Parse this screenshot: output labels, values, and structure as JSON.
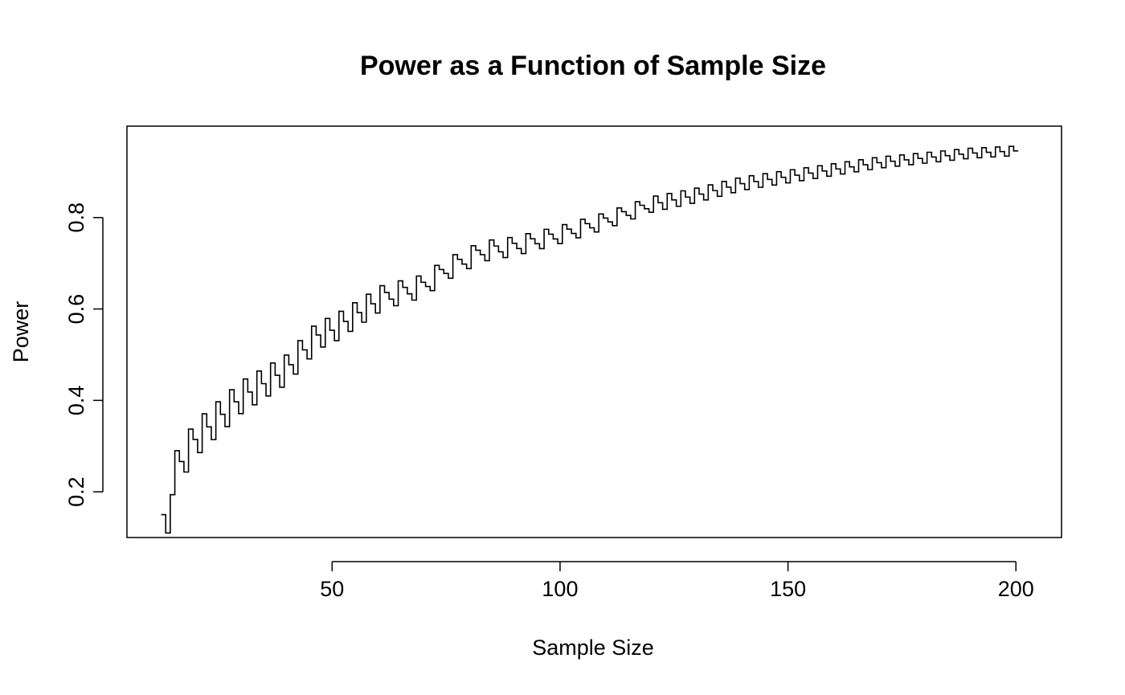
{
  "chart_data": {
    "type": "line",
    "line_style": "step",
    "title": "Power as a Function of Sample Size",
    "xlabel": "Sample Size",
    "ylabel": "Power",
    "xlim": [
      5,
      210
    ],
    "ylim": [
      0.1,
      1.0
    ],
    "x_ticks": [
      50,
      100,
      150,
      200
    ],
    "y_ticks": [
      0.2,
      0.4,
      0.6,
      0.8
    ],
    "x_tick_labels": [
      "50",
      "100",
      "150",
      "200"
    ],
    "y_tick_labels": [
      "0.2",
      "0.4",
      "0.6",
      "0.8"
    ],
    "grid": false,
    "legend": "none",
    "series": [
      {
        "color": "#000000",
        "x_start": 13,
        "x_end": 200,
        "x_step": 1,
        "trend": "saw-tooth step curve rising from about 0.15 at n=13 to about 0.95 at n=200, oscillating within a band that narrows as n grows",
        "anchor_points": [
          {
            "x": 13,
            "y": 0.15
          },
          {
            "x": 14,
            "y": 0.11
          },
          {
            "x": 15,
            "y": 0.25
          },
          {
            "x": 20,
            "y": 0.33
          },
          {
            "x": 30,
            "y": 0.42
          },
          {
            "x": 40,
            "y": 0.48
          },
          {
            "x": 47,
            "y": 0.555
          },
          {
            "x": 50,
            "y": 0.565
          },
          {
            "x": 61,
            "y": 0.635
          },
          {
            "x": 70,
            "y": 0.66
          },
          {
            "x": 75,
            "y": 0.695
          },
          {
            "x": 83,
            "y": 0.735
          },
          {
            "x": 90,
            "y": 0.745
          },
          {
            "x": 100,
            "y": 0.77
          },
          {
            "x": 110,
            "y": 0.8
          },
          {
            "x": 120,
            "y": 0.835
          },
          {
            "x": 130,
            "y": 0.855
          },
          {
            "x": 140,
            "y": 0.88
          },
          {
            "x": 150,
            "y": 0.895
          },
          {
            "x": 160,
            "y": 0.91
          },
          {
            "x": 170,
            "y": 0.925
          },
          {
            "x": 180,
            "y": 0.935
          },
          {
            "x": 190,
            "y": 0.945
          },
          {
            "x": 200,
            "y": 0.95
          }
        ]
      }
    ]
  }
}
